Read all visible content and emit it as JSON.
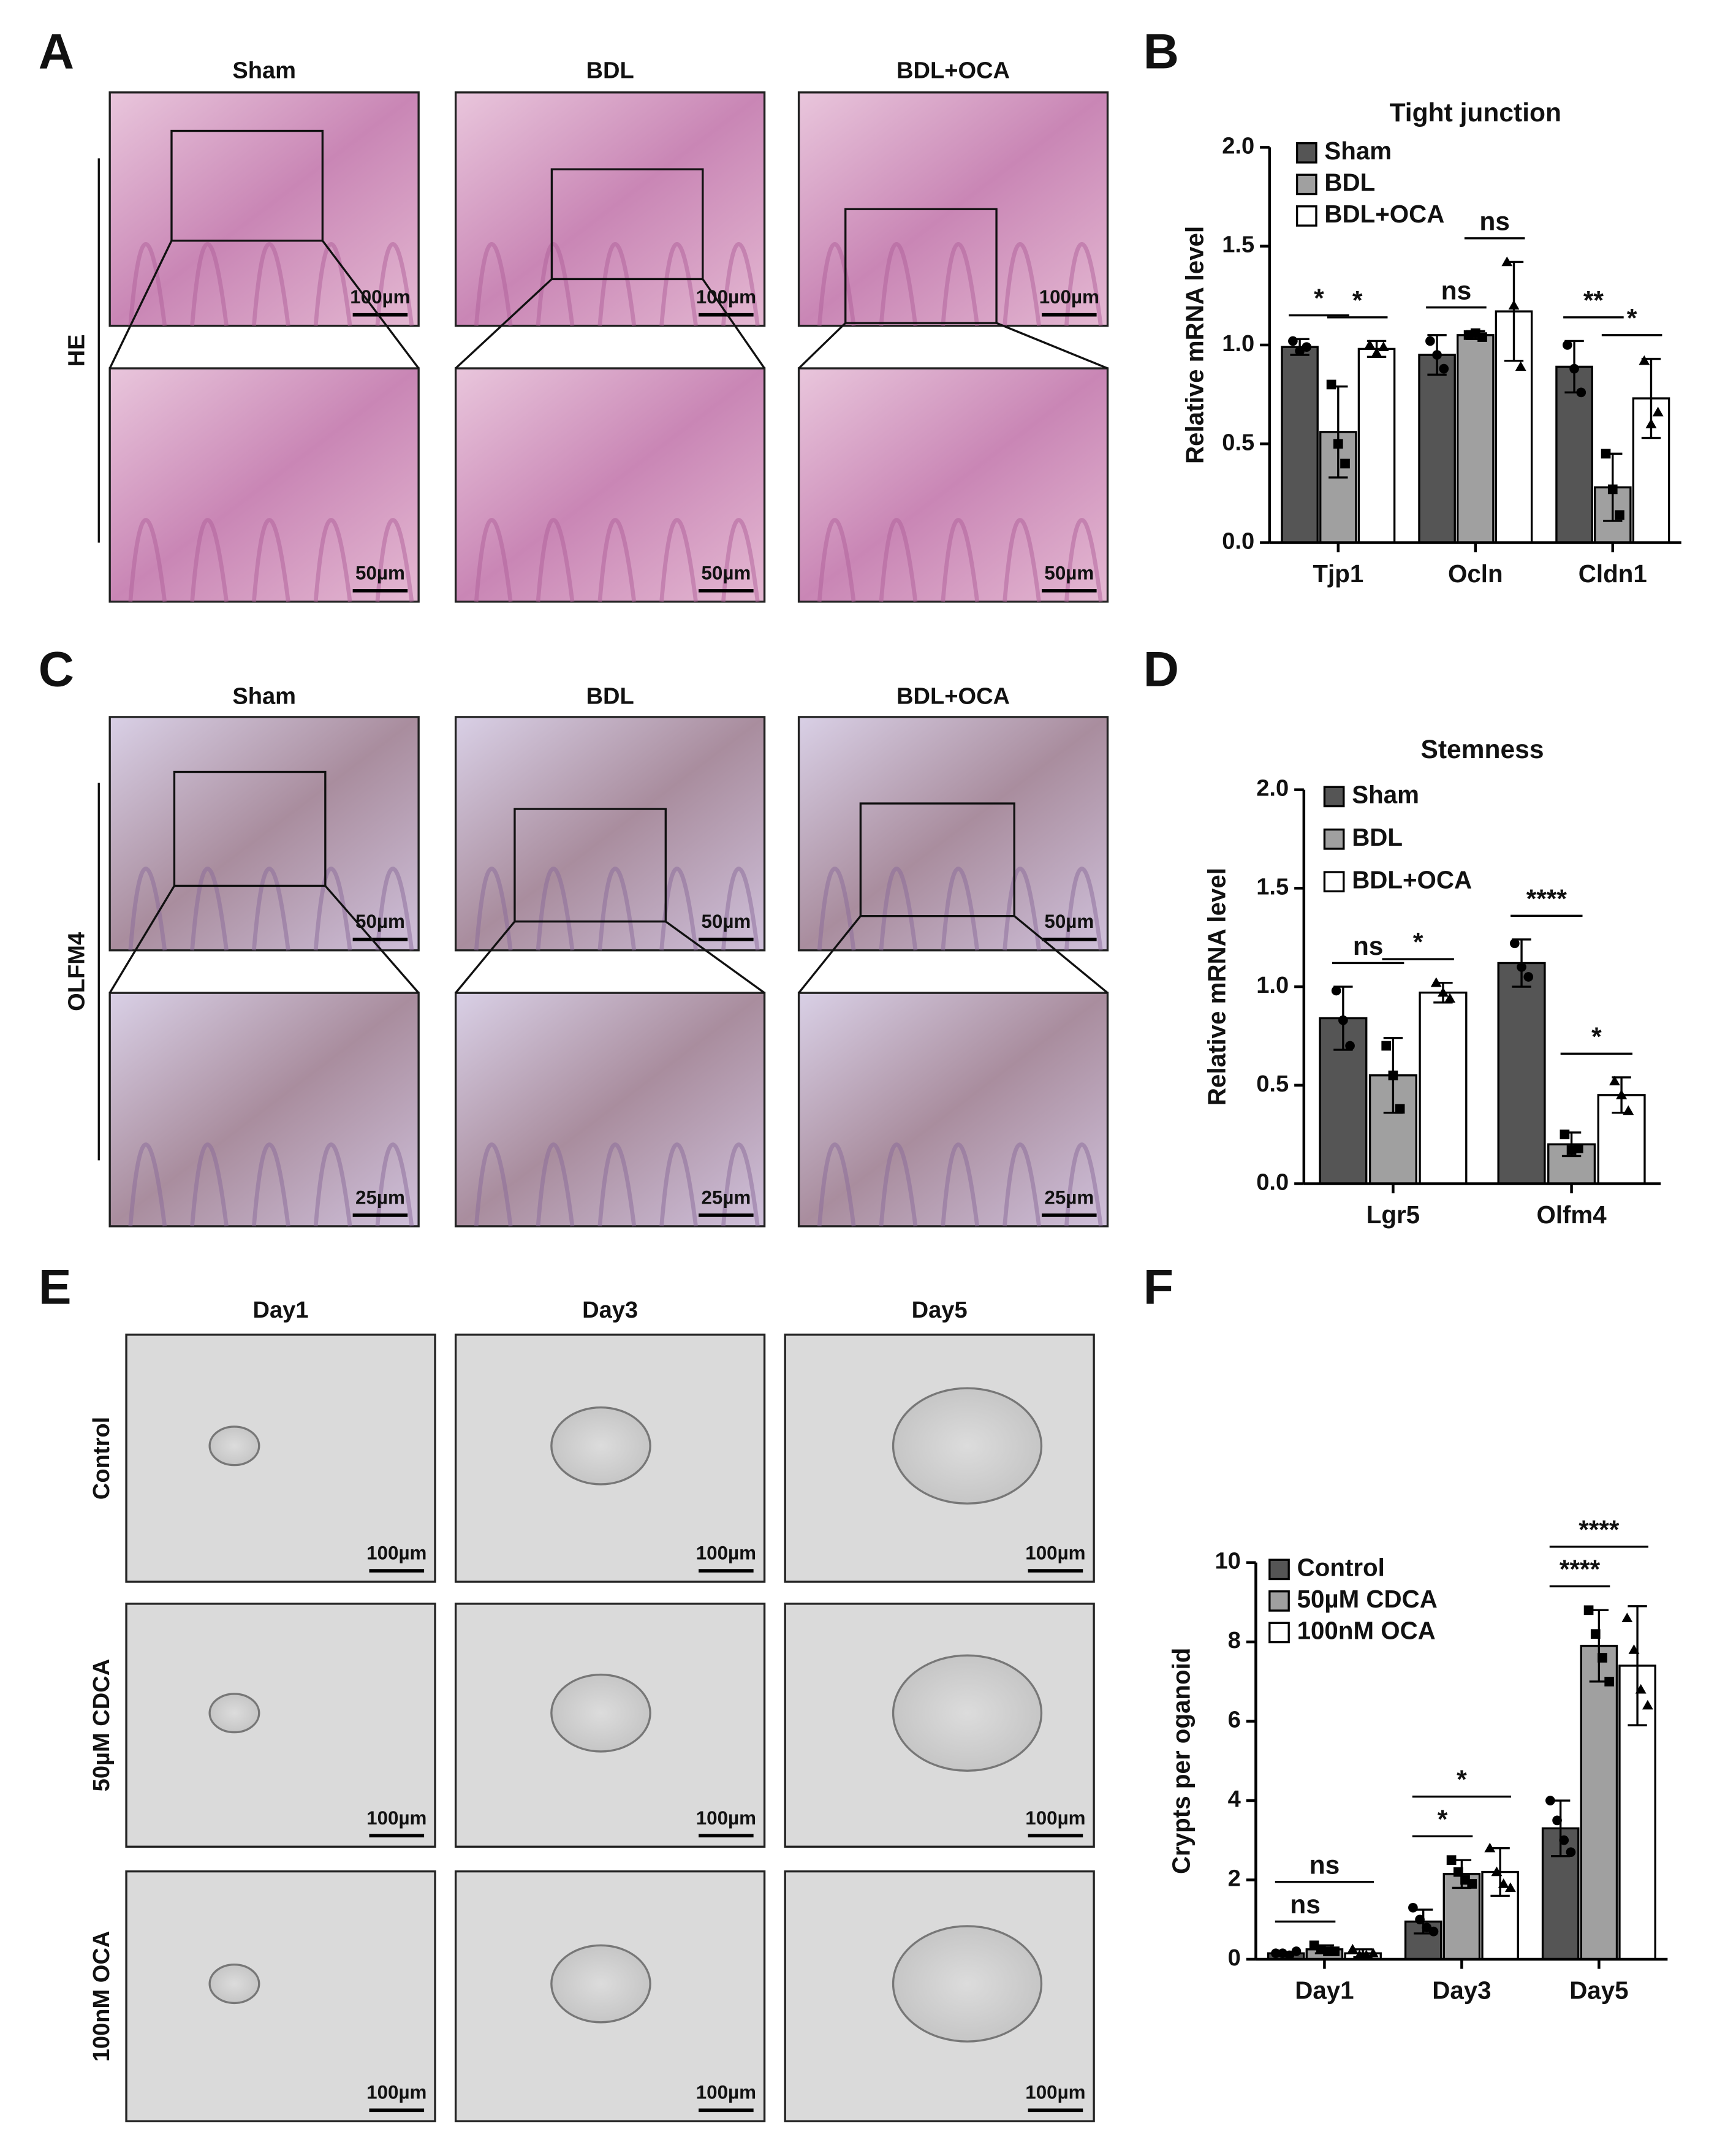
{
  "panel_labels": [
    "A",
    "B",
    "C",
    "D",
    "E",
    "F"
  ],
  "micrographs": [
    {
      "stain": "HE",
      "columns": [
        "Sham",
        "BDL",
        "BDL+OCA"
      ],
      "scale_bars": [
        "100µm",
        "50µm"
      ]
    },
    {
      "stain": "OLFM4",
      "columns": [
        "Sham",
        "BDL",
        "BDL+OCA"
      ],
      "scale_bars": [
        "50µm",
        "25µm"
      ]
    },
    {
      "columns": [
        "Day1",
        "Day3",
        "Day5"
      ],
      "rows": [
        "Control",
        "50µM CDCA",
        "100nM OCA"
      ],
      "scale_bar": "100µm"
    }
  ],
  "chart_data": [
    {
      "type": "bar",
      "title": "Tight junction",
      "y_label": "Relative mRNA level",
      "categories": [
        "Tjp1",
        "Ocln",
        "Cldn1"
      ],
      "series": [
        {
          "name": "Sham",
          "color": "#555555",
          "values": [
            0.99,
            0.95,
            0.89
          ],
          "errors": [
            0.04,
            0.1,
            0.13
          ],
          "points": [
            [
              1.02,
              0.97,
              0.99
            ],
            [
              1.02,
              0.95,
              0.88
            ],
            [
              1.0,
              0.88,
              0.76
            ]
          ]
        },
        {
          "name": "BDL",
          "color": "#a0a0a0",
          "values": [
            0.56,
            1.05,
            0.28
          ],
          "errors": [
            0.23,
            0.02,
            0.17
          ],
          "points": [
            [
              0.8,
              0.5,
              0.4
            ],
            [
              1.05,
              1.06,
              1.04
            ],
            [
              0.45,
              0.27,
              0.14
            ]
          ]
        },
        {
          "name": "BDL+OCA",
          "color": "#ffffff",
          "values": [
            0.98,
            1.17,
            0.73
          ],
          "errors": [
            0.04,
            0.25,
            0.2
          ],
          "points": [
            [
              1.0,
              0.96,
              0.99
            ],
            [
              1.42,
              1.2,
              0.89
            ],
            [
              0.92,
              0.6,
              0.66
            ]
          ]
        }
      ],
      "ylim": [
        0,
        2.0
      ],
      "yticks": [
        {
          "value": 0,
          "label": "0.0"
        },
        {
          "value": 0.5,
          "label": "0.5"
        },
        {
          "value": 1.0,
          "label": "1.0"
        },
        {
          "value": 1.5,
          "label": "1.5"
        },
        {
          "value": 2.0,
          "label": "2.0"
        }
      ],
      "legend": "upper left",
      "annotations": [
        {
          "text": "*",
          "category": 0,
          "series": [
            0,
            1
          ]
        },
        {
          "text": "*",
          "category": 0,
          "series": [
            1,
            2
          ]
        },
        {
          "text": "ns",
          "category": 1,
          "series": [
            0,
            1
          ]
        },
        {
          "text": "ns",
          "category": 1,
          "series": [
            1,
            2
          ]
        },
        {
          "text": "**",
          "category": 2,
          "series": [
            0,
            1
          ]
        },
        {
          "text": "*",
          "category": 2,
          "series": [
            1,
            2
          ]
        }
      ]
    },
    {
      "type": "bar",
      "title": "Stemness",
      "y_label": "Relative mRNA level",
      "categories": [
        "Lgr5",
        "Olfm4"
      ],
      "series": [
        {
          "name": "Sham",
          "color": "#555555",
          "values": [
            0.84,
            1.12
          ],
          "errors": [
            0.16,
            0.12
          ],
          "points": [
            [
              0.98,
              0.83,
              0.7
            ],
            [
              1.22,
              1.1,
              1.05
            ]
          ]
        },
        {
          "name": "BDL",
          "color": "#a0a0a0",
          "values": [
            0.55,
            0.2
          ],
          "errors": [
            0.19,
            0.06
          ],
          "points": [
            [
              0.7,
              0.55,
              0.38
            ],
            [
              0.25,
              0.17,
              0.18
            ]
          ]
        },
        {
          "name": "BDL+OCA",
          "color": "#ffffff",
          "values": [
            0.97,
            0.45
          ],
          "errors": [
            0.05,
            0.09
          ],
          "points": [
            [
              1.02,
              0.97,
              0.94
            ],
            [
              0.52,
              0.45,
              0.37
            ]
          ]
        }
      ],
      "ylim": [
        0,
        2.0
      ],
      "yticks": [
        {
          "value": 0,
          "label": "0.0"
        },
        {
          "value": 0.5,
          "label": "0.5"
        },
        {
          "value": 1.0,
          "label": "1.0"
        },
        {
          "value": 1.5,
          "label": "1.5"
        },
        {
          "value": 2.0,
          "label": "2.0"
        }
      ],
      "legend": "upper left",
      "annotations": [
        {
          "text": "ns",
          "category": 0,
          "series": [
            0,
            1
          ]
        },
        {
          "text": "*",
          "category": 0,
          "series": [
            1,
            2
          ]
        },
        {
          "text": "****",
          "category": 1,
          "series": [
            0,
            1
          ]
        },
        {
          "text": "*",
          "category": 1,
          "series": [
            1,
            2
          ]
        }
      ]
    },
    {
      "type": "bar",
      "y_label": "Crypts per oganoid",
      "categories": [
        "Day1",
        "Day3",
        "Day5"
      ],
      "series": [
        {
          "name": "Control",
          "color": "#555555",
          "values": [
            0.15,
            0.95,
            3.3
          ],
          "errors": [
            0.03,
            0.3,
            0.7
          ],
          "points": [
            [
              0.15,
              0.15,
              0.1,
              0.2
            ],
            [
              1.3,
              1.0,
              0.8,
              0.7
            ],
            [
              4.0,
              3.5,
              3.0,
              2.7
            ]
          ]
        },
        {
          "name": "50µM CDCA",
          "color": "#a0a0a0",
          "values": [
            0.25,
            2.15,
            7.9
          ],
          "errors": [
            0.1,
            0.35,
            0.9
          ],
          "points": [
            [
              0.35,
              0.25,
              0.2,
              0.2
            ],
            [
              2.5,
              2.2,
              2.0,
              1.9
            ],
            [
              8.8,
              8.2,
              7.6,
              7.0
            ]
          ]
        },
        {
          "name": "100nM OCA",
          "color": "#ffffff",
          "values": [
            0.15,
            2.2,
            7.4
          ],
          "errors": [
            0.1,
            0.6,
            1.5
          ],
          "points": [
            [
              0.25,
              0.1,
              0.1,
              0.15
            ],
            [
              2.8,
              2.2,
              1.9,
              1.8
            ],
            [
              8.6,
              7.8,
              6.8,
              6.4
            ]
          ]
        }
      ],
      "ylim": [
        0,
        10
      ],
      "yticks": [
        0,
        2,
        4,
        6,
        8,
        10
      ],
      "legend": "upper left",
      "annotations": [
        {
          "text": "ns",
          "category": 0,
          "series": [
            0,
            1
          ]
        },
        {
          "text": "ns",
          "category": 0,
          "series": [
            0,
            2
          ]
        },
        {
          "text": "*",
          "category": 1,
          "series": [
            0,
            1
          ]
        },
        {
          "text": "*",
          "category": 1,
          "series": [
            0,
            2
          ]
        },
        {
          "text": "****",
          "category": 2,
          "series": [
            0,
            1
          ]
        },
        {
          "text": "****",
          "category": 2,
          "series": [
            0,
            2
          ]
        }
      ]
    }
  ]
}
